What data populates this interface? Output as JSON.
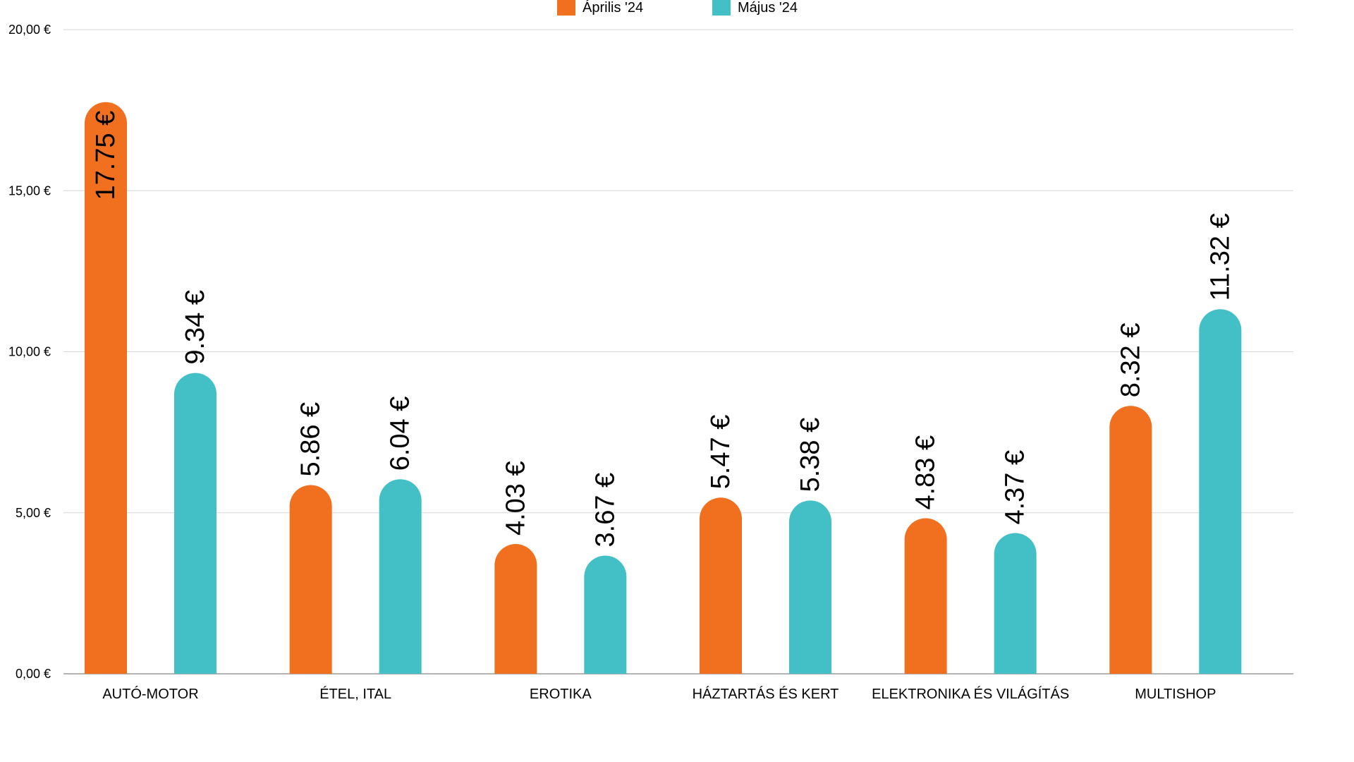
{
  "chart_data": {
    "type": "bar",
    "categories": [
      "AUTÓ-MOTOR",
      "ÉTEL, ITAL",
      "EROTIKA",
      "HÁZTARTÁS ÉS KERT",
      "ELEKTRONIKA ÉS VILÁGÍTÁS",
      "MULTISHOP"
    ],
    "series": [
      {
        "name": "Április '24",
        "color": "#f07020",
        "values": [
          17.75,
          5.86,
          4.03,
          5.47,
          4.83,
          8.32
        ],
        "labels": [
          "17.75 €",
          "5.86 €",
          "4.03 €",
          "5.47 €",
          "4.83 €",
          "8.32 €"
        ]
      },
      {
        "name": "Május '24",
        "color": "#42c0c6",
        "values": [
          9.34,
          6.04,
          3.67,
          5.38,
          4.37,
          11.32
        ],
        "labels": [
          "9.34 €",
          "6.04 €",
          "3.67 €",
          "5.38 €",
          "4.37 €",
          "11.32 €"
        ]
      }
    ],
    "ylim": [
      0,
      20
    ],
    "yticks": [
      0,
      5,
      10,
      15,
      20
    ],
    "ytick_labels": [
      "0,00 €",
      "5,00 €",
      "10,00 €",
      "15,00 €",
      "20,00 €"
    ],
    "title": "",
    "xlabel": "",
    "ylabel": "",
    "legend_position": "top-center",
    "grid": true
  }
}
